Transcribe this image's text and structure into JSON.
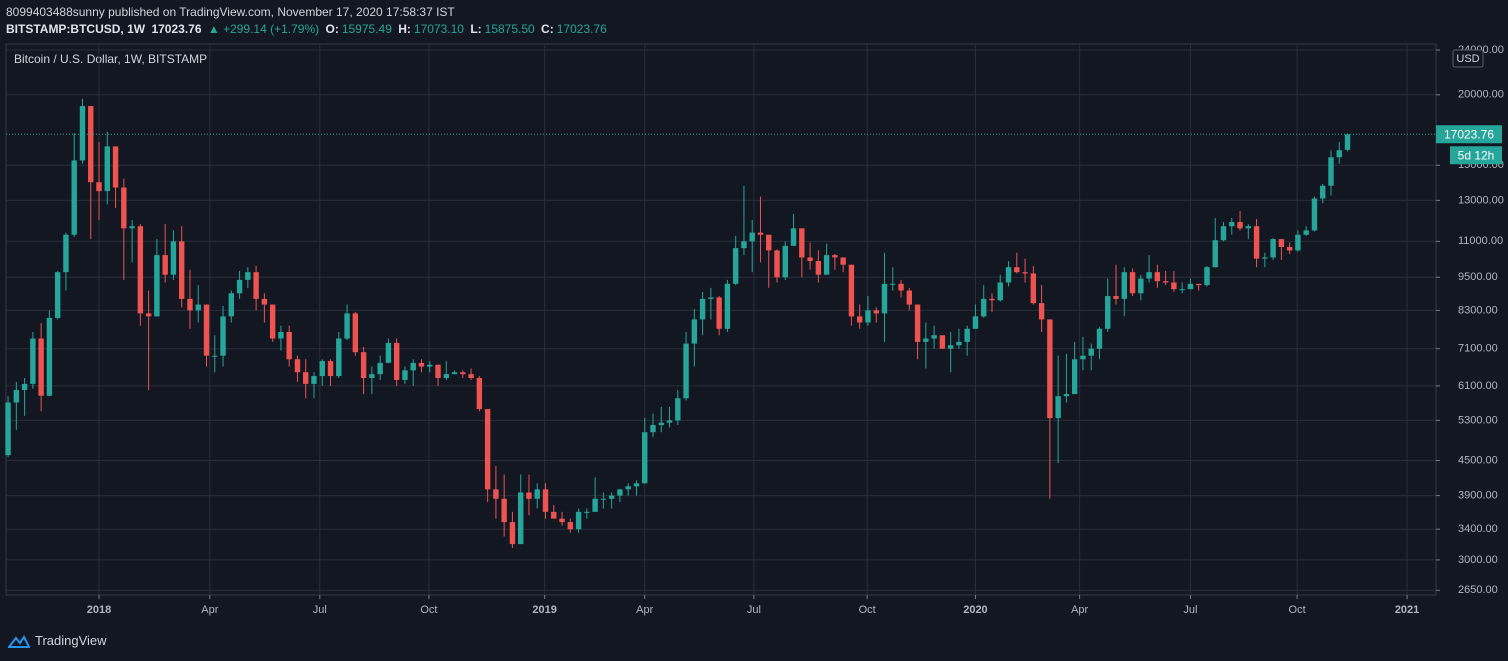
{
  "header": {
    "published": "8099403488sunny published on TradingView.com, November 17, 2020 17:58:37 IST",
    "symbol": "BITSTAMP:BTCUSD, 1W",
    "last": "17023.76",
    "change": "▲ +299.14 (+1.79%)",
    "o_label": "O:",
    "open": "15975.49",
    "h_label": "H:",
    "high": "17073.10",
    "l_label": "L:",
    "low": "15875.50",
    "c_label": "C:",
    "close": "17023.76"
  },
  "footer": {
    "brand": "TradingView"
  },
  "chart_data": {
    "type": "candlestick",
    "title": "Bitcoin / U.S. Dollar, 1W, BITSTAMP",
    "currency": "USD",
    "last_price_label": "17023.76",
    "countdown": "5d 12h",
    "up_color": "#26a69a",
    "down_color": "#ef5350",
    "grid": true,
    "log_scale": true,
    "ylim": [
      2600,
      24600
    ],
    "yticks": [
      {
        "value": 2650,
        "label": "2650.00"
      },
      {
        "value": 3000,
        "label": "3000.00"
      },
      {
        "value": 3400,
        "label": "3400.00"
      },
      {
        "value": 3900,
        "label": "3900.00"
      },
      {
        "value": 4500,
        "label": "4500.00"
      },
      {
        "value": 5300,
        "label": "5300.00"
      },
      {
        "value": 6100,
        "label": "6100.00"
      },
      {
        "value": 7100,
        "label": "7100.00"
      },
      {
        "value": 8300,
        "label": "8300.00"
      },
      {
        "value": 9500,
        "label": "9500.00"
      },
      {
        "value": 11000,
        "label": "11000.00"
      },
      {
        "value": 13000,
        "label": "13000.00"
      },
      {
        "value": 15000,
        "label": "15000.00"
      },
      {
        "value": 20000,
        "label": "20000.00"
      },
      {
        "value": 24000,
        "label": "24000.00"
      }
    ],
    "xlim": [
      -0.25,
      172.7
    ],
    "xticks": [
      {
        "value": 11.0,
        "label": "2018"
      },
      {
        "value": 24.4,
        "label": "Apr"
      },
      {
        "value": 37.7,
        "label": "Jul"
      },
      {
        "value": 50.9,
        "label": "Oct"
      },
      {
        "value": 64.9,
        "label": "2019"
      },
      {
        "value": 77.0,
        "label": "Apr"
      },
      {
        "value": 90.2,
        "label": "Jul"
      },
      {
        "value": 103.9,
        "label": "Oct"
      },
      {
        "value": 117.0,
        "label": "2020"
      },
      {
        "value": 129.6,
        "label": "Apr"
      },
      {
        "value": 143.0,
        "label": "Jul"
      },
      {
        "value": 155.9,
        "label": "Oct"
      },
      {
        "value": 169.2,
        "label": "2021"
      }
    ],
    "candles": [
      [
        4600,
        5850,
        4560,
        5700
      ],
      [
        5700,
        6200,
        5100,
        6000
      ],
      [
        6000,
        6300,
        5400,
        6150
      ],
      [
        6150,
        7600,
        6030,
        7400
      ],
      [
        7400,
        7880,
        5500,
        5860
      ],
      [
        5860,
        8300,
        5850,
        8050
      ],
      [
        8050,
        9750,
        8000,
        9700
      ],
      [
        9700,
        11400,
        9000,
        11300
      ],
      [
        11300,
        17100,
        11200,
        15300
      ],
      [
        15300,
        19666,
        15100,
        19100
      ],
      [
        19100,
        19100,
        11100,
        14000
      ],
      [
        14000,
        16500,
        12000,
        13500
      ],
      [
        13500,
        17200,
        12800,
        16200
      ],
      [
        16200,
        16200,
        12600,
        13700
      ],
      [
        13700,
        14200,
        9400,
        11600
      ],
      [
        11600,
        12000,
        10100,
        11700
      ],
      [
        11700,
        11800,
        7800,
        8200
      ],
      [
        8200,
        9000,
        6000,
        8100
      ],
      [
        8100,
        11100,
        8100,
        10400
      ],
      [
        10400,
        11800,
        9300,
        9600
      ],
      [
        9600,
        11500,
        9400,
        11000
      ],
      [
        11000,
        11700,
        8400,
        8700
      ],
      [
        8700,
        9800,
        7700,
        8300
      ],
      [
        8300,
        9200,
        7900,
        8500
      ],
      [
        8500,
        8500,
        6600,
        6900
      ],
      [
        6900,
        7500,
        6450,
        6900
      ],
      [
        6900,
        8450,
        6600,
        8100
      ],
      [
        8100,
        9000,
        7900,
        8900
      ],
      [
        8900,
        9750,
        8700,
        9400
      ],
      [
        9400,
        9900,
        9100,
        9700
      ],
      [
        9700,
        9950,
        8300,
        8700
      ],
      [
        8700,
        8900,
        7900,
        8500
      ],
      [
        8500,
        8500,
        7300,
        7400
      ],
      [
        7400,
        7800,
        7050,
        7600
      ],
      [
        7600,
        7800,
        6600,
        6800
      ],
      [
        6800,
        6900,
        6200,
        6450
      ],
      [
        6450,
        6800,
        5800,
        6150
      ],
      [
        6150,
        6450,
        5800,
        6350
      ],
      [
        6350,
        6800,
        6100,
        6750
      ],
      [
        6750,
        6800,
        6100,
        6350
      ],
      [
        6350,
        7600,
        6300,
        7400
      ],
      [
        7400,
        8500,
        7350,
        8200
      ],
      [
        8200,
        8250,
        6900,
        7000
      ],
      [
        7000,
        7150,
        5900,
        6300
      ],
      [
        6300,
        6600,
        5900,
        6400
      ],
      [
        6400,
        6900,
        6250,
        6700
      ],
      [
        6700,
        7400,
        6700,
        7270
      ],
      [
        7270,
        7400,
        6100,
        6250
      ],
      [
        6250,
        6600,
        6150,
        6500
      ],
      [
        6500,
        6800,
        6100,
        6700
      ],
      [
        6700,
        6800,
        6450,
        6600
      ],
      [
        6600,
        6750,
        6450,
        6650
      ],
      [
        6650,
        6650,
        6100,
        6300
      ],
      [
        6300,
        6750,
        6250,
        6400
      ],
      [
        6400,
        6500,
        6400,
        6450
      ],
      [
        6450,
        6500,
        6300,
        6400
      ],
      [
        6400,
        6550,
        6250,
        6300
      ],
      [
        6300,
        6350,
        5500,
        5550
      ],
      [
        5550,
        5550,
        3800,
        4000
      ],
      [
        4000,
        4400,
        3550,
        3850
      ],
      [
        3850,
        4250,
        3300,
        3500
      ],
      [
        3500,
        3650,
        3150,
        3200
      ],
      [
        3200,
        4250,
        3200,
        3950
      ],
      [
        3950,
        4250,
        3600,
        3850
      ],
      [
        3850,
        4100,
        3700,
        4000
      ],
      [
        4000,
        4100,
        3550,
        3650
      ],
      [
        3650,
        3750,
        3550,
        3550
      ],
      [
        3550,
        3650,
        3450,
        3500
      ],
      [
        3500,
        3550,
        3350,
        3400
      ],
      [
        3400,
        3700,
        3350,
        3650
      ],
      [
        3650,
        3700,
        3550,
        3650
      ],
      [
        3650,
        4200,
        3650,
        3850
      ],
      [
        3850,
        3950,
        3700,
        3850
      ],
      [
        3850,
        3950,
        3700,
        3900
      ],
      [
        3900,
        4000,
        3800,
        4000
      ],
      [
        4000,
        4100,
        3900,
        4050
      ],
      [
        4050,
        4150,
        3900,
        4100
      ],
      [
        4100,
        5350,
        4100,
        5050
      ],
      [
        5050,
        5450,
        4950,
        5200
      ],
      [
        5200,
        5600,
        5050,
        5250
      ],
      [
        5250,
        5600,
        5150,
        5300
      ],
      [
        5300,
        6000,
        5200,
        5800
      ],
      [
        5800,
        7600,
        5750,
        7250
      ],
      [
        7250,
        8350,
        6600,
        8000
      ],
      [
        8000,
        8950,
        7500,
        8700
      ],
      [
        8700,
        9100,
        8000,
        8750
      ],
      [
        8750,
        8800,
        7500,
        7700
      ],
      [
        7700,
        9400,
        7600,
        9250
      ],
      [
        9250,
        11250,
        9200,
        10700
      ],
      [
        10700,
        13800,
        10400,
        11000
      ],
      [
        11000,
        12000,
        9700,
        11400
      ],
      [
        11400,
        13200,
        10100,
        11300
      ],
      [
        11300,
        11300,
        9100,
        10600
      ],
      [
        10600,
        10650,
        9300,
        9500
      ],
      [
        9500,
        11000,
        9400,
        10800
      ],
      [
        10800,
        12300,
        10800,
        11600
      ],
      [
        11600,
        11600,
        9500,
        10300
      ],
      [
        10300,
        10950,
        9800,
        10150
      ],
      [
        10150,
        10600,
        9300,
        9600
      ],
      [
        9600,
        10900,
        9600,
        10400
      ],
      [
        10400,
        10450,
        9800,
        10300
      ],
      [
        10300,
        10300,
        9700,
        10000
      ],
      [
        10000,
        10000,
        7800,
        8100
      ],
      [
        8100,
        8500,
        7700,
        7900
      ],
      [
        7900,
        8800,
        7800,
        8300
      ],
      [
        8300,
        8400,
        7900,
        8200
      ],
      [
        8200,
        10500,
        7300,
        9250
      ],
      [
        9250,
        9900,
        9000,
        9250
      ],
      [
        9250,
        9400,
        8750,
        9000
      ],
      [
        9000,
        9100,
        8300,
        8500
      ],
      [
        8500,
        8500,
        6800,
        7300
      ],
      [
        7300,
        7900,
        6550,
        7400
      ],
      [
        7400,
        7800,
        7100,
        7500
      ],
      [
        7500,
        7500,
        7100,
        7100
      ],
      [
        7100,
        7600,
        6450,
        7200
      ],
      [
        7200,
        7700,
        7100,
        7300
      ],
      [
        7300,
        7800,
        6900,
        7700
      ],
      [
        7700,
        8500,
        7700,
        8100
      ],
      [
        8100,
        9200,
        8050,
        8700
      ],
      [
        8700,
        8900,
        8250,
        8650
      ],
      [
        8650,
        9600,
        8600,
        9300
      ],
      [
        9300,
        10150,
        9150,
        9900
      ],
      [
        9900,
        10500,
        9650,
        9700
      ],
      [
        9700,
        10250,
        9300,
        9650
      ],
      [
        9650,
        9950,
        8500,
        8550
      ],
      [
        8550,
        9200,
        7600,
        8000
      ],
      [
        8000,
        8000,
        3850,
        5350
      ],
      [
        5350,
        6900,
        4450,
        5850
      ],
      [
        5850,
        6950,
        5700,
        5900
      ],
      [
        5900,
        7300,
        5900,
        6800
      ],
      [
        6800,
        7450,
        6500,
        6900
      ],
      [
        6900,
        7250,
        6500,
        7100
      ],
      [
        7100,
        7750,
        6800,
        7700
      ],
      [
        7700,
        9450,
        7600,
        8800
      ],
      [
        8800,
        10000,
        8500,
        8700
      ],
      [
        8700,
        9900,
        8100,
        9700
      ],
      [
        9700,
        9850,
        8800,
        8900
      ],
      [
        8900,
        9600,
        8650,
        9450
      ],
      [
        9450,
        10400,
        9300,
        9700
      ],
      [
        9700,
        10000,
        9100,
        9350
      ],
      [
        9350,
        9750,
        9200,
        9300
      ],
      [
        9300,
        9750,
        8950,
        9050
      ],
      [
        9050,
        9300,
        8900,
        9050
      ],
      [
        9050,
        9450,
        9050,
        9250
      ],
      [
        9250,
        9250,
        9000,
        9200
      ],
      [
        9200,
        9950,
        9150,
        9900
      ],
      [
        9900,
        12100,
        9900,
        11050
      ],
      [
        11050,
        11900,
        11000,
        11700
      ],
      [
        11700,
        12100,
        11300,
        11900
      ],
      [
        11900,
        12450,
        11500,
        11600
      ],
      [
        11600,
        11800,
        11100,
        11700
      ],
      [
        11700,
        12050,
        9900,
        10250
      ],
      [
        10250,
        10500,
        9900,
        10300
      ],
      [
        10300,
        11150,
        10200,
        11100
      ],
      [
        11100,
        11100,
        10200,
        10750
      ],
      [
        10750,
        10950,
        10450,
        10600
      ],
      [
        10600,
        11500,
        10550,
        11300
      ],
      [
        11300,
        11700,
        11250,
        11500
      ],
      [
        11500,
        13200,
        11450,
        13100
      ],
      [
        13100,
        13900,
        12850,
        13800
      ],
      [
        13800,
        15950,
        13250,
        15500
      ],
      [
        15500,
        16500,
        15100,
        15950
      ],
      [
        15975.49,
        17073.1,
        15875.5,
        17023.76
      ]
    ]
  }
}
